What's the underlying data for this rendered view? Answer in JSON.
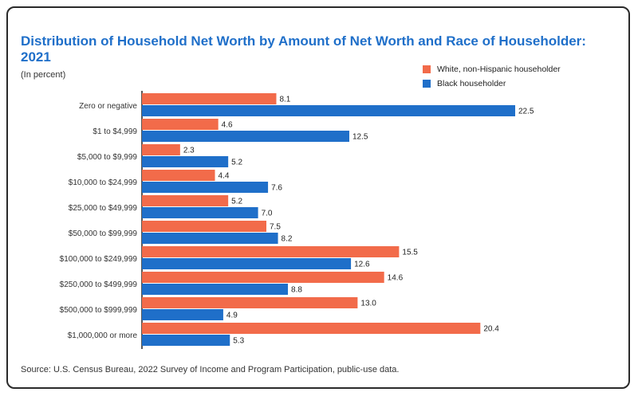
{
  "chart_data": {
    "type": "bar",
    "orientation": "horizontal",
    "title": "Distribution of Household Net Worth by Amount of Net Worth and Race of Householder: 2021",
    "subtitle": "(In percent)",
    "source": "Source: U.S. Census Bureau, 2022 Survey of Income and Program Participation, public-use data.",
    "legend_position": "top-right",
    "categories": [
      "Zero or negative",
      "$1 to $4,999",
      "$5,000 to $9,999",
      "$10,000 to $24,999",
      "$25,000 to $49,999",
      "$50,000 to $99,999",
      "$100,000 to $249,999",
      "$250,000 to $499,999",
      "$500,000 to $999,999",
      "$1,000,000 or more"
    ],
    "series": [
      {
        "name": "White, non-Hispanic householder",
        "color": "#f26b4a",
        "values": [
          8.1,
          4.6,
          2.3,
          4.4,
          5.2,
          7.5,
          15.5,
          14.6,
          13.0,
          20.4
        ],
        "labels": [
          "8.1",
          "4.6",
          "2.3",
          "4.4",
          "5.2",
          "7.5",
          "15.5",
          "14.6",
          "13.0",
          "20.4"
        ]
      },
      {
        "name": "Black householder",
        "color": "#1f6fc9",
        "values": [
          22.5,
          12.5,
          5.2,
          7.6,
          7.0,
          8.2,
          12.6,
          8.8,
          4.9,
          5.3
        ],
        "labels": [
          "22.5",
          "12.5",
          "5.2",
          "7.6",
          "7.0",
          "8.2",
          "12.6",
          "8.8",
          "4.9",
          "5.3"
        ]
      }
    ],
    "xlim": [
      0,
      25
    ],
    "grid": false
  }
}
